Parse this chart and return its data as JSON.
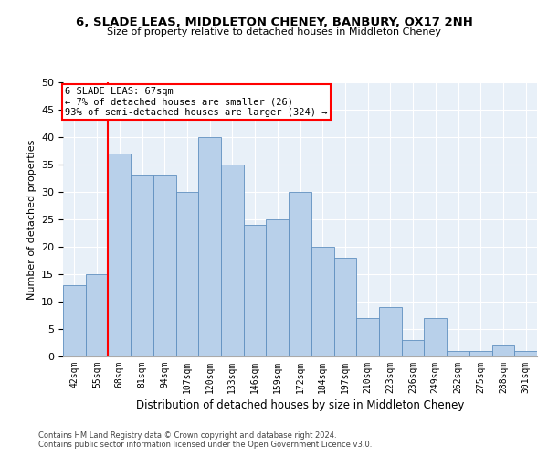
{
  "title1": "6, SLADE LEAS, MIDDLETON CHENEY, BANBURY, OX17 2NH",
  "title2": "Size of property relative to detached houses in Middleton Cheney",
  "xlabel": "Distribution of detached houses by size in Middleton Cheney",
  "ylabel": "Number of detached properties",
  "categories": [
    "42sqm",
    "55sqm",
    "68sqm",
    "81sqm",
    "94sqm",
    "107sqm",
    "120sqm",
    "133sqm",
    "146sqm",
    "159sqm",
    "172sqm",
    "184sqm",
    "197sqm",
    "210sqm",
    "223sqm",
    "236sqm",
    "249sqm",
    "262sqm",
    "275sqm",
    "288sqm",
    "301sqm"
  ],
  "values": [
    13,
    15,
    37,
    33,
    33,
    30,
    40,
    35,
    24,
    25,
    30,
    20,
    18,
    7,
    9,
    3,
    7,
    1,
    1,
    2,
    1
  ],
  "bar_color": "#b8d0ea",
  "bar_edge_color": "#5f8fbf",
  "redline_x": 2,
  "annotation_line1": "6 SLADE LEAS: 67sqm",
  "annotation_line2": "← 7% of detached houses are smaller (26)",
  "annotation_line3": "93% of semi-detached houses are larger (324) →",
  "ylim": [
    0,
    50
  ],
  "yticks": [
    0,
    5,
    10,
    15,
    20,
    25,
    30,
    35,
    40,
    45,
    50
  ],
  "bg_color": "#e8f0f8",
  "grid_color": "#ffffff",
  "footnote1": "Contains HM Land Registry data © Crown copyright and database right 2024.",
  "footnote2": "Contains public sector information licensed under the Open Government Licence v3.0."
}
